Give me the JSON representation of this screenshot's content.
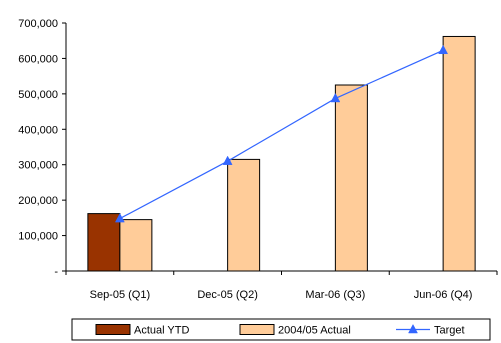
{
  "chart_data": {
    "type": "bar",
    "categories": [
      "Sep-05 (Q1)",
      "Dec-05 (Q2)",
      "Mar-06 (Q3)",
      "Jun-06 (Q4)"
    ],
    "series": [
      {
        "name": "Actual YTD",
        "kind": "bar",
        "color": "#993300",
        "values": [
          162000,
          null,
          null,
          null
        ]
      },
      {
        "name": "2004/05 Actual",
        "kind": "bar",
        "color": "#FFCC99",
        "values": [
          145000,
          315000,
          525000,
          662000
        ]
      },
      {
        "name": "Target",
        "kind": "line",
        "color": "#3366FF",
        "marker": "triangle",
        "values": [
          148000,
          310000,
          487000,
          623000
        ]
      }
    ],
    "y_ticks": [
      {
        "value": 0,
        "label": "-"
      },
      {
        "value": 100000,
        "label": "100,000"
      },
      {
        "value": 200000,
        "label": "200,000"
      },
      {
        "value": 300000,
        "label": "300,000"
      },
      {
        "value": 400000,
        "label": "400,000"
      },
      {
        "value": 500000,
        "label": "500,000"
      },
      {
        "value": 600000,
        "label": "600,000"
      },
      {
        "value": 700000,
        "label": "700,000"
      }
    ],
    "ylim": [
      0,
      700000
    ],
    "grid": false,
    "legend_position": "bottom"
  }
}
